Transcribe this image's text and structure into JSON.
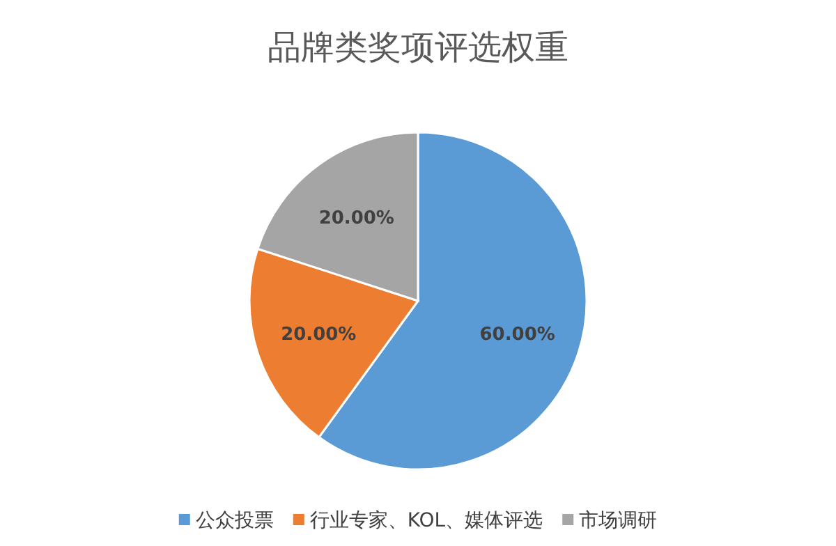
{
  "chart_data": {
    "type": "pie",
    "title": "品牌类奖项评选权重",
    "categories": [
      "公众投票",
      "行业专家、KOL、媒体评选",
      "市场调研"
    ],
    "values": [
      60,
      20,
      20
    ],
    "colors": [
      "#5b9bd5",
      "#ed7d31",
      "#a5a5a5"
    ],
    "value_labels": [
      "60.00%",
      "20.00%",
      "20.00%"
    ],
    "legend": "bottom"
  }
}
